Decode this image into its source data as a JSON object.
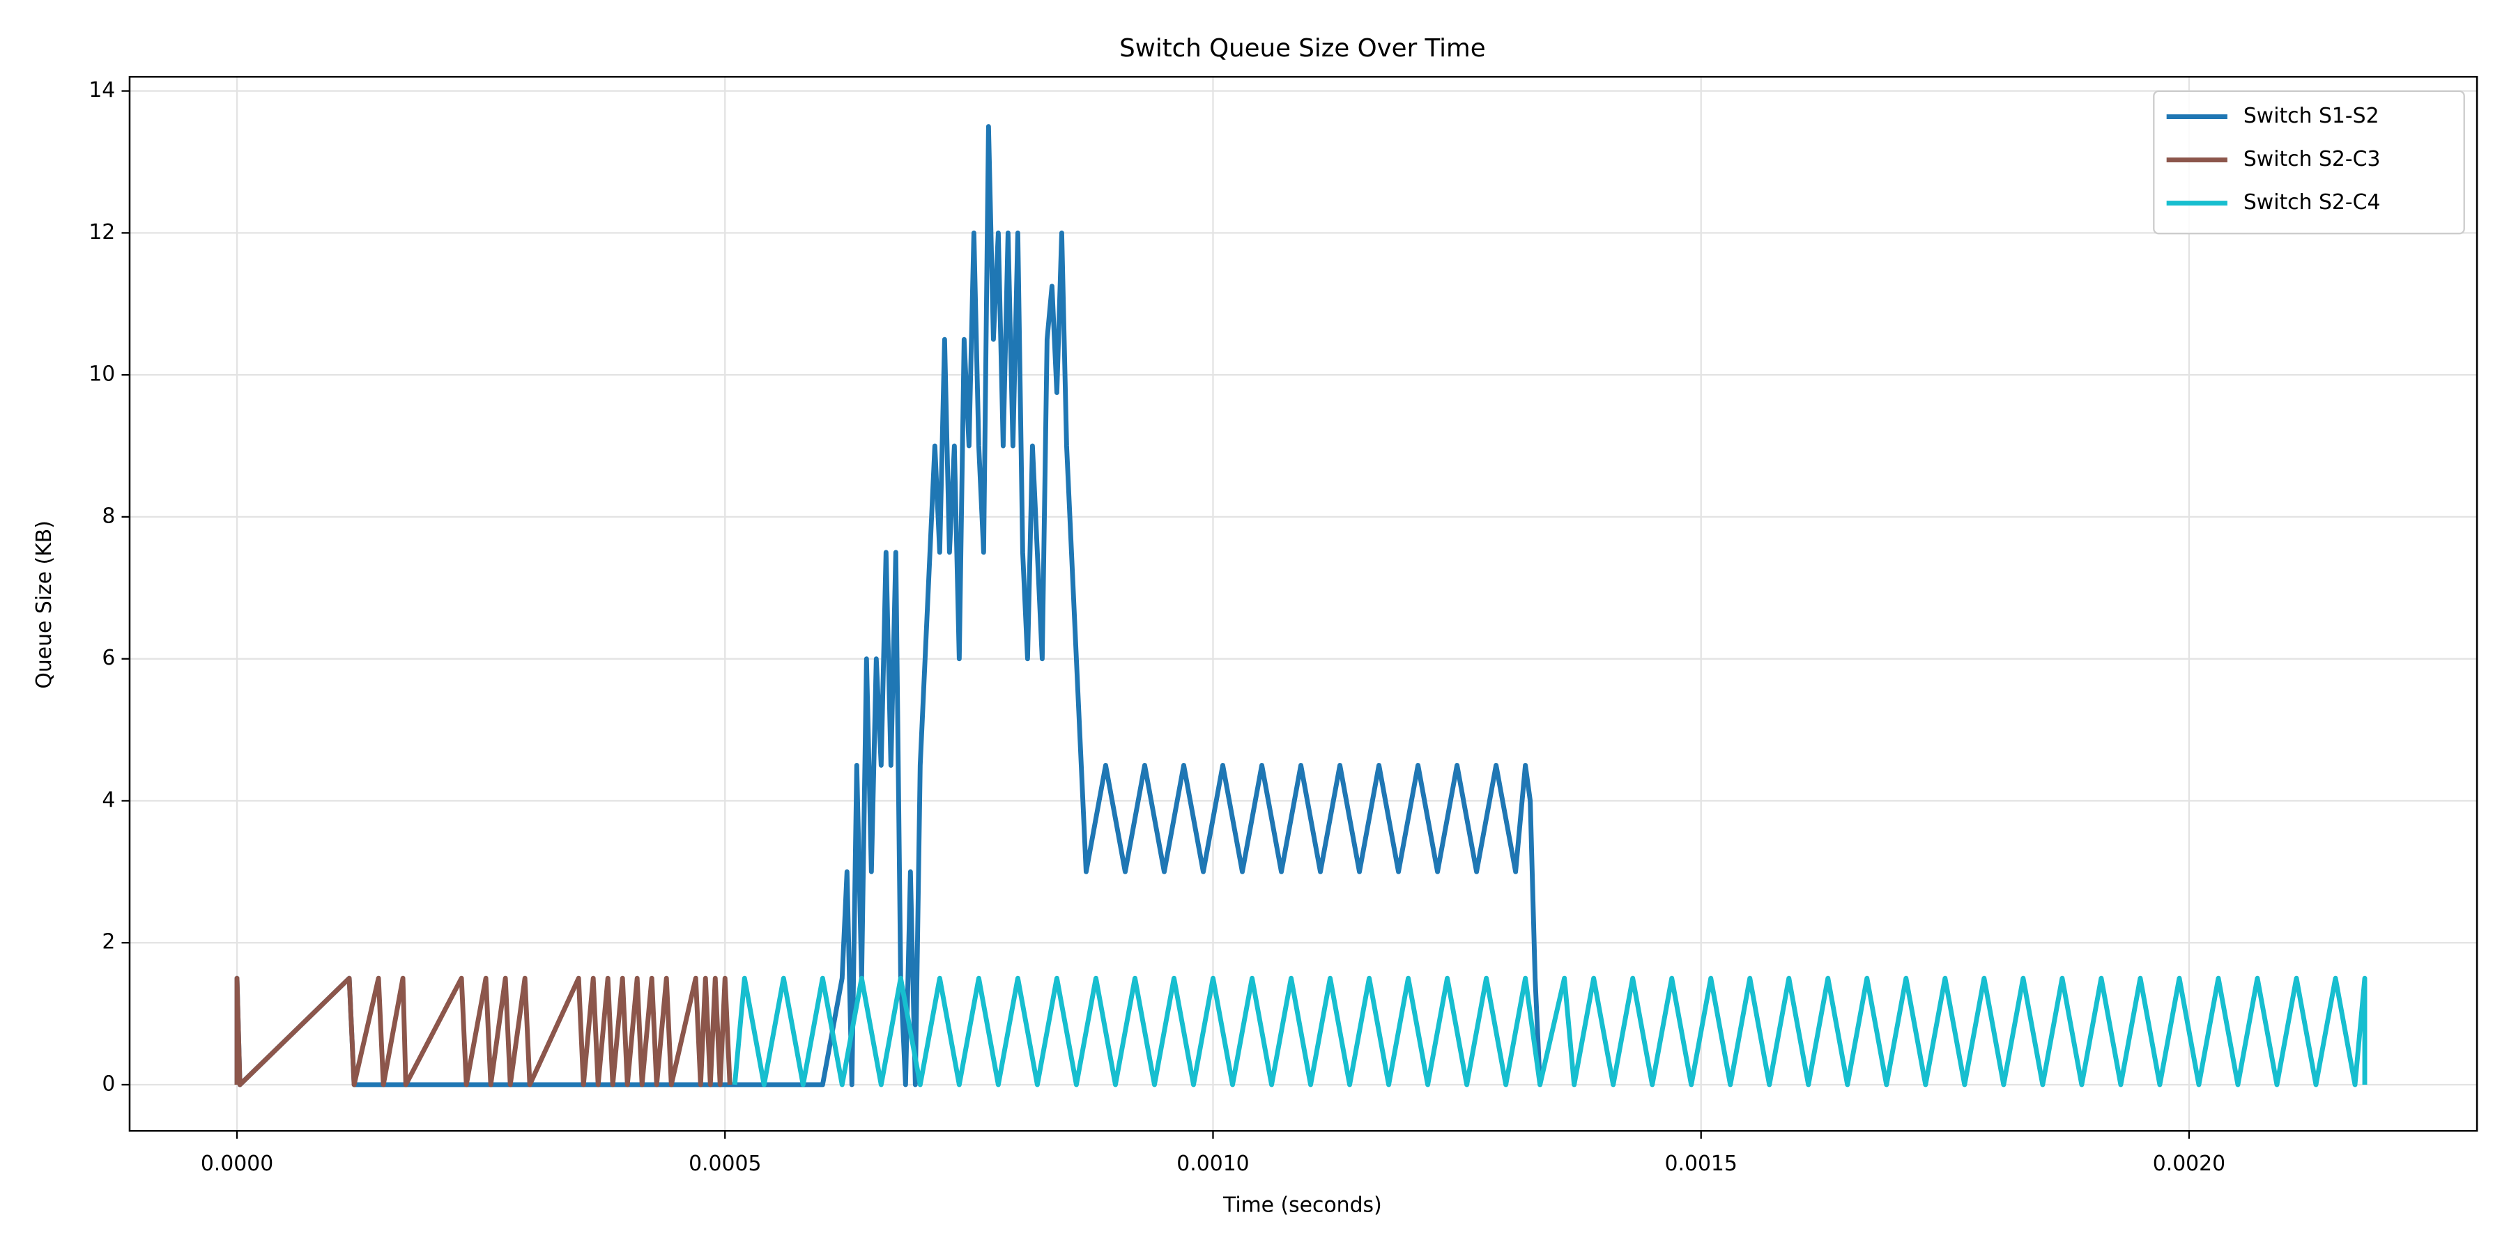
{
  "chart_data": {
    "type": "line",
    "title": "Switch Queue Size Over Time",
    "xlabel": "Time (seconds)",
    "ylabel": "Queue Size (KB)",
    "xlim": [
      -0.00011,
      0.002295
    ],
    "ylim": [
      -0.65,
      14.2
    ],
    "xticks": [
      {
        "value": 0,
        "label": "0.0000"
      },
      {
        "value": 0.0005,
        "label": "0.0005"
      },
      {
        "value": 0.001,
        "label": "0.0010"
      },
      {
        "value": 0.0015,
        "label": "0.0015"
      },
      {
        "value": 0.002,
        "label": "0.0020"
      }
    ],
    "yticks": [
      0,
      2,
      4,
      6,
      8,
      10,
      12,
      14
    ],
    "grid": true,
    "legend": "upper right",
    "series": [
      {
        "name": "Switch S1-S2",
        "color": "#1f77b4",
        "x": [
          0,
          0,
          3e-06,
          0.000115,
          0.00012,
          0.00052,
          0.0006,
          0.00062,
          0.000625,
          0.00063,
          0.000635,
          0.00064,
          0.000645,
          0.00065,
          0.000655,
          0.00066,
          0.000665,
          0.00067,
          0.000675,
          0.00068,
          0.000685,
          0.00069,
          0.000695,
          0.0007,
          0.000705,
          0.00071,
          0.000715,
          0.00072,
          0.000725,
          0.00073,
          0.000735,
          0.00074,
          0.000745,
          0.00075,
          0.000755,
          0.00076,
          0.000765,
          0.00077,
          0.000775,
          0.00078,
          0.000785,
          0.00079,
          0.000795,
          0.0008,
          0.000805,
          0.00081,
          0.000815,
          0.00082,
          0.000825,
          0.00083,
          0.000835,
          0.00084,
          0.000845,
          0.00085,
          0.000855,
          0.00086,
          0.000865,
          0.00087,
          0.00089,
          0.00091,
          0.00093,
          0.00095,
          0.00097,
          0.00099,
          0.00101,
          0.00103,
          0.00105,
          0.00107,
          0.00109,
          0.00111,
          0.00113,
          0.00115,
          0.00117,
          0.00119,
          0.00121,
          0.00123,
          0.00125,
          0.00127,
          0.00129,
          0.00131,
          0.00132,
          0.001325,
          0.00133,
          0.001335
        ],
        "values": [
          0,
          1.5,
          0,
          1.5,
          0,
          0,
          0,
          1.5,
          3,
          0,
          4.5,
          1.5,
          6,
          3,
          6,
          4.5,
          7.5,
          4.5,
          7.5,
          1.5,
          0,
          3,
          0,
          4.5,
          6,
          7.5,
          9,
          7.5,
          10.5,
          7.5,
          9,
          6,
          10.5,
          9,
          12,
          9,
          7.5,
          13.5,
          10.5,
          12,
          9,
          12,
          9,
          12,
          7.5,
          6,
          9,
          7.5,
          6,
          10.5,
          11.25,
          9.75,
          12,
          9,
          7.5,
          6,
          4.5,
          3,
          4.5,
          3,
          4.5,
          3,
          4.5,
          3,
          4.5,
          3,
          4.5,
          3,
          4.5,
          3,
          4.5,
          3,
          4.5,
          3,
          4.5,
          3,
          4.5,
          3,
          4.5,
          3,
          4.5,
          4,
          1.5,
          0
        ]
      },
      {
        "name": "Switch S2-C3",
        "color": "#8c564b",
        "x": [
          0,
          0,
          3e-06,
          0.000115,
          0.00012,
          0.000145,
          0.00015,
          0.00017,
          0.000173,
          0.00023,
          0.000235,
          0.000255,
          0.00026,
          0.000275,
          0.00028,
          0.000295,
          0.0003,
          0.00035,
          0.000355,
          0.000365,
          0.00037,
          0.00038,
          0.000385,
          0.000395,
          0.0004,
          0.00041,
          0.000415,
          0.000425,
          0.00043,
          0.00044,
          0.000445,
          0.00047,
          0.000475,
          0.00048,
          0.000485,
          0.00049,
          0.000495,
          0.0005,
          0.000505
        ],
        "values": [
          0,
          1.5,
          0,
          1.5,
          0,
          1.5,
          0,
          1.5,
          0,
          1.5,
          0,
          1.5,
          0,
          1.5,
          0,
          1.5,
          0,
          1.5,
          0,
          1.5,
          0,
          1.5,
          0,
          1.5,
          0,
          1.5,
          0,
          1.5,
          0,
          1.5,
          0,
          1.5,
          0,
          1.5,
          0,
          1.5,
          0,
          1.5,
          0
        ]
      },
      {
        "name": "Switch S2-C4",
        "color": "#17becf",
        "x": [
          0.00051,
          0.00052,
          0.00054,
          0.00056,
          0.00058,
          0.0006,
          0.00062,
          0.00064,
          0.00066,
          0.00068,
          0.0007,
          0.00072,
          0.00074,
          0.00076,
          0.00078,
          0.0008,
          0.00082,
          0.00084,
          0.00086,
          0.00088,
          0.0009,
          0.00092,
          0.00094,
          0.00096,
          0.00098,
          0.001,
          0.00102,
          0.00104,
          0.00106,
          0.00108,
          0.0011,
          0.00112,
          0.00114,
          0.00116,
          0.00118,
          0.0012,
          0.00122,
          0.00124,
          0.00126,
          0.00128,
          0.0013,
          0.00132,
          0.001335,
          0.00136,
          0.00137,
          0.00139,
          0.00141,
          0.00143,
          0.00145,
          0.00147,
          0.00149,
          0.00151,
          0.00153,
          0.00155,
          0.00157,
          0.00159,
          0.00161,
          0.00163,
          0.00165,
          0.00167,
          0.00169,
          0.00171,
          0.00173,
          0.00175,
          0.00177,
          0.00179,
          0.00181,
          0.00183,
          0.00185,
          0.00187,
          0.00189,
          0.00191,
          0.00193,
          0.00195,
          0.00197,
          0.00199,
          0.00201,
          0.00203,
          0.00205,
          0.00207,
          0.00209,
          0.00211,
          0.00213,
          0.00215,
          0.00217,
          0.00218,
          0.00218
        ],
        "values": [
          0,
          1.5,
          0,
          1.5,
          0,
          1.5,
          0,
          1.5,
          0,
          1.5,
          0,
          1.5,
          0,
          1.5,
          0,
          1.5,
          0,
          1.5,
          0,
          1.5,
          0,
          1.5,
          0,
          1.5,
          0,
          1.5,
          0,
          1.5,
          0,
          1.5,
          0,
          1.5,
          0,
          1.5,
          0,
          1.5,
          0,
          1.5,
          0,
          1.5,
          0,
          1.5,
          0,
          1.5,
          0,
          1.5,
          0,
          1.5,
          0,
          1.5,
          0,
          1.5,
          0,
          1.5,
          0,
          1.5,
          0,
          1.5,
          0,
          1.5,
          0,
          1.5,
          0,
          1.5,
          0,
          1.5,
          0,
          1.5,
          0,
          1.5,
          0,
          1.5,
          0,
          1.5,
          0,
          1.5,
          0,
          1.5,
          0,
          1.5,
          0,
          1.5,
          0,
          1.5,
          0,
          1.5,
          0
        ]
      }
    ]
  }
}
